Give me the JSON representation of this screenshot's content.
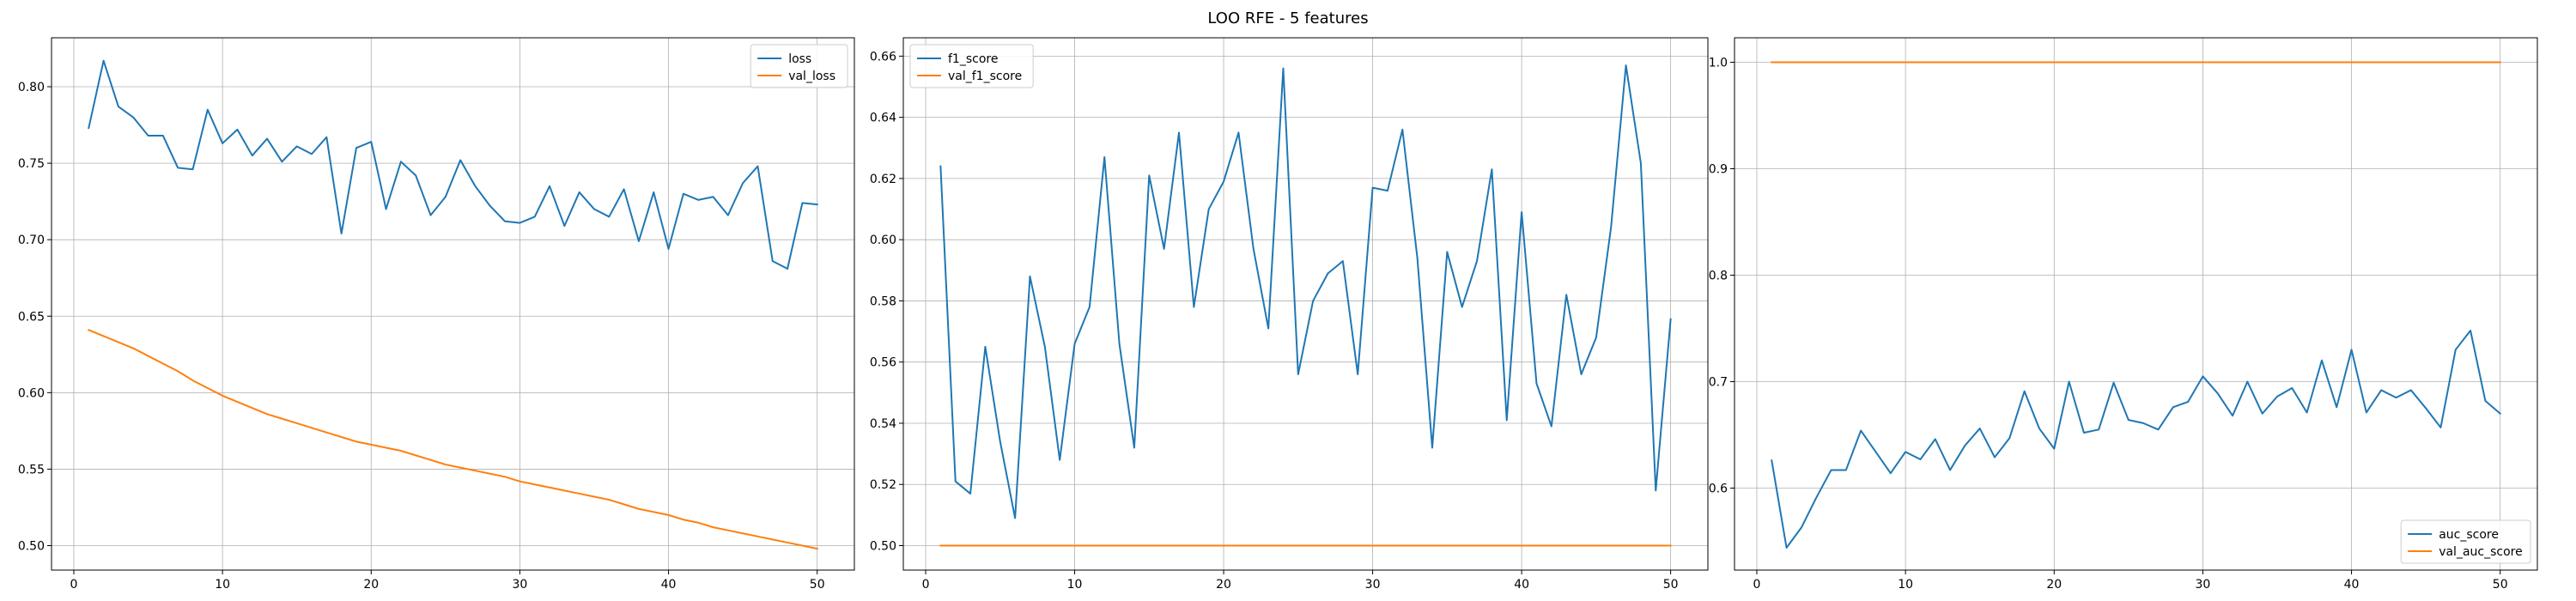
{
  "figure": {
    "suptitle": "LOO RFE - 5 features"
  },
  "colors": {
    "train": "#1f77b4",
    "val": "#ff7f0e"
  },
  "chart_data": [
    {
      "type": "line",
      "title": "",
      "xlabel": "",
      "ylabel": "",
      "xlim": [
        -1.5,
        52.5
      ],
      "ylim": [
        0.484,
        0.832
      ],
      "xticks": [
        0,
        10,
        20,
        30,
        40,
        50
      ],
      "yticks": [
        0.5,
        0.55,
        0.6,
        0.65,
        0.7,
        0.75,
        0.8
      ],
      "tick_decimals": 2,
      "grid": true,
      "legend_position": "top-right",
      "x": [
        1,
        2,
        3,
        4,
        5,
        6,
        7,
        8,
        9,
        10,
        11,
        12,
        13,
        14,
        15,
        16,
        17,
        18,
        19,
        20,
        21,
        22,
        23,
        24,
        25,
        26,
        27,
        28,
        29,
        30,
        31,
        32,
        33,
        34,
        35,
        36,
        37,
        38,
        39,
        40,
        41,
        42,
        43,
        44,
        45,
        46,
        47,
        48,
        49,
        50
      ],
      "series": [
        {
          "name": "loss",
          "color": "#1f77b4",
          "values": [
            0.773,
            0.817,
            0.787,
            0.78,
            0.768,
            0.768,
            0.747,
            0.746,
            0.785,
            0.763,
            0.772,
            0.755,
            0.766,
            0.751,
            0.761,
            0.756,
            0.767,
            0.704,
            0.76,
            0.764,
            0.72,
            0.751,
            0.742,
            0.716,
            0.728,
            0.752,
            0.735,
            0.722,
            0.712,
            0.711,
            0.715,
            0.735,
            0.709,
            0.731,
            0.72,
            0.715,
            0.733,
            0.699,
            0.731,
            0.694,
            0.73,
            0.726,
            0.728,
            0.716,
            0.737,
            0.748,
            0.686,
            0.681,
            0.724,
            0.723
          ]
        },
        {
          "name": "val_loss",
          "color": "#ff7f0e",
          "values": [
            0.641,
            0.637,
            0.633,
            0.629,
            0.624,
            0.619,
            0.614,
            0.608,
            0.603,
            0.598,
            0.594,
            0.59,
            0.586,
            0.583,
            0.58,
            0.577,
            0.574,
            0.571,
            0.568,
            0.566,
            0.564,
            0.562,
            0.559,
            0.556,
            0.553,
            0.551,
            0.549,
            0.547,
            0.545,
            0.542,
            0.54,
            0.538,
            0.536,
            0.534,
            0.532,
            0.53,
            0.527,
            0.524,
            0.522,
            0.52,
            0.517,
            0.515,
            0.512,
            0.51,
            0.508,
            0.506,
            0.504,
            0.502,
            0.5,
            0.498
          ]
        }
      ]
    },
    {
      "type": "line",
      "title": "",
      "xlabel": "",
      "ylabel": "",
      "xlim": [
        -1.5,
        52.5
      ],
      "ylim": [
        0.492,
        0.666
      ],
      "xticks": [
        0,
        10,
        20,
        30,
        40,
        50
      ],
      "yticks": [
        0.5,
        0.52,
        0.54,
        0.56,
        0.58,
        0.6,
        0.62,
        0.64,
        0.66
      ],
      "tick_decimals": 2,
      "grid": true,
      "legend_position": "top-left",
      "x": [
        1,
        2,
        3,
        4,
        5,
        6,
        7,
        8,
        9,
        10,
        11,
        12,
        13,
        14,
        15,
        16,
        17,
        18,
        19,
        20,
        21,
        22,
        23,
        24,
        25,
        26,
        27,
        28,
        29,
        30,
        31,
        32,
        33,
        34,
        35,
        36,
        37,
        38,
        39,
        40,
        41,
        42,
        43,
        44,
        45,
        46,
        47,
        48,
        49,
        50
      ],
      "series": [
        {
          "name": "f1_score",
          "color": "#1f77b4",
          "values": [
            0.624,
            0.521,
            0.517,
            0.565,
            0.534,
            0.509,
            0.588,
            0.565,
            0.528,
            0.566,
            0.578,
            0.627,
            0.566,
            0.532,
            0.621,
            0.597,
            0.635,
            0.578,
            0.61,
            0.619,
            0.635,
            0.597,
            0.571,
            0.656,
            0.556,
            0.58,
            0.589,
            0.593,
            0.556,
            0.617,
            0.616,
            0.636,
            0.594,
            0.532,
            0.596,
            0.578,
            0.593,
            0.623,
            0.541,
            0.609,
            0.553,
            0.539,
            0.582,
            0.556,
            0.568,
            0.604,
            0.657,
            0.625,
            0.518,
            0.574
          ]
        },
        {
          "name": "val_f1_score",
          "color": "#ff7f0e",
          "values": [
            0.5,
            0.5,
            0.5,
            0.5,
            0.5,
            0.5,
            0.5,
            0.5,
            0.5,
            0.5,
            0.5,
            0.5,
            0.5,
            0.5,
            0.5,
            0.5,
            0.5,
            0.5,
            0.5,
            0.5,
            0.5,
            0.5,
            0.5,
            0.5,
            0.5,
            0.5,
            0.5,
            0.5,
            0.5,
            0.5,
            0.5,
            0.5,
            0.5,
            0.5,
            0.5,
            0.5,
            0.5,
            0.5,
            0.5,
            0.5,
            0.5,
            0.5,
            0.5,
            0.5,
            0.5,
            0.5,
            0.5,
            0.5,
            0.5,
            0.5
          ]
        }
      ]
    },
    {
      "type": "line",
      "title": "",
      "xlabel": "",
      "ylabel": "",
      "xlim": [
        -1.5,
        52.5
      ],
      "ylim": [
        0.523,
        1.023
      ],
      "xticks": [
        0,
        10,
        20,
        30,
        40,
        50
      ],
      "yticks": [
        0.6,
        0.7,
        0.8,
        0.9,
        1.0
      ],
      "tick_decimals": 1,
      "grid": true,
      "legend_position": "bottom-right",
      "x": [
        1,
        2,
        3,
        4,
        5,
        6,
        7,
        8,
        9,
        10,
        11,
        12,
        13,
        14,
        15,
        16,
        17,
        18,
        19,
        20,
        21,
        22,
        23,
        24,
        25,
        26,
        27,
        28,
        29,
        30,
        31,
        32,
        33,
        34,
        35,
        36,
        37,
        38,
        39,
        40,
        41,
        42,
        43,
        44,
        45,
        46,
        47,
        48,
        49,
        50
      ],
      "series": [
        {
          "name": "auc_score",
          "color": "#1f77b4",
          "values": [
            0.626,
            0.544,
            0.563,
            0.591,
            0.617,
            0.617,
            0.654,
            0.634,
            0.614,
            0.634,
            0.627,
            0.646,
            0.617,
            0.64,
            0.656,
            0.629,
            0.647,
            0.691,
            0.656,
            0.637,
            0.7,
            0.652,
            0.655,
            0.699,
            0.664,
            0.661,
            0.655,
            0.676,
            0.681,
            0.705,
            0.689,
            0.668,
            0.7,
            0.67,
            0.686,
            0.694,
            0.671,
            0.72,
            0.676,
            0.73,
            0.671,
            0.692,
            0.685,
            0.692,
            0.675,
            0.657,
            0.73,
            0.748,
            0.682,
            0.67
          ]
        },
        {
          "name": "val_auc_score",
          "color": "#ff7f0e",
          "values": [
            1.0,
            1.0,
            1.0,
            1.0,
            1.0,
            1.0,
            1.0,
            1.0,
            1.0,
            1.0,
            1.0,
            1.0,
            1.0,
            1.0,
            1.0,
            1.0,
            1.0,
            1.0,
            1.0,
            1.0,
            1.0,
            1.0,
            1.0,
            1.0,
            1.0,
            1.0,
            1.0,
            1.0,
            1.0,
            1.0,
            1.0,
            1.0,
            1.0,
            1.0,
            1.0,
            1.0,
            1.0,
            1.0,
            1.0,
            1.0,
            1.0,
            1.0,
            1.0,
            1.0,
            1.0,
            1.0,
            1.0,
            1.0,
            1.0,
            1.0
          ]
        }
      ]
    }
  ]
}
